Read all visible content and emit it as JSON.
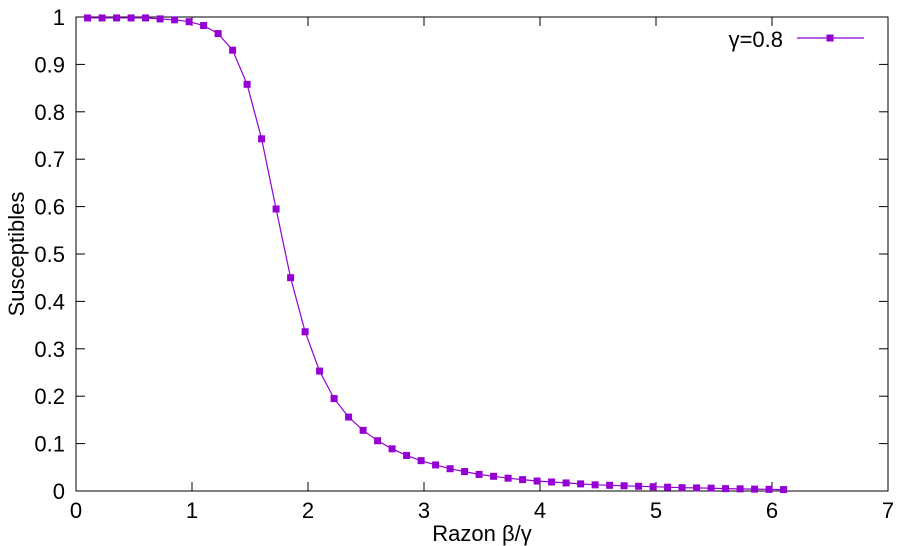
{
  "chart_data": {
    "type": "line",
    "xlabel": "Razon β/γ",
    "ylabel": "Susceptibles",
    "xlim": [
      0,
      7
    ],
    "ylim": [
      0,
      1
    ],
    "xticks": [
      "0",
      "1",
      "2",
      "3",
      "4",
      "5",
      "6",
      "7"
    ],
    "yticks": [
      "0",
      "0.1",
      "0.2",
      "0.3",
      "0.4",
      "0.5",
      "0.6",
      "0.7",
      "0.8",
      "0.9",
      "1"
    ],
    "grid": false,
    "legend_position": "top-right",
    "series": [
      {
        "name": "γ=0.8",
        "color": "#9400d3",
        "marker": "square",
        "x": [
          0.1,
          0.225,
          0.35,
          0.475,
          0.6,
          0.725,
          0.85,
          0.975,
          1.1,
          1.225,
          1.35,
          1.475,
          1.6,
          1.725,
          1.85,
          1.975,
          2.1,
          2.225,
          2.35,
          2.475,
          2.6,
          2.725,
          2.85,
          2.975,
          3.1,
          3.225,
          3.35,
          3.475,
          3.6,
          3.725,
          3.85,
          3.975,
          4.1,
          4.225,
          4.35,
          4.475,
          4.6,
          4.725,
          4.85,
          4.975,
          5.1,
          5.225,
          5.35,
          5.475,
          5.6,
          5.725,
          5.85,
          5.975,
          6.1
        ],
        "y": [
          0.998,
          0.998,
          0.998,
          0.998,
          0.998,
          0.996,
          0.994,
          0.99,
          0.982,
          0.965,
          0.93,
          0.858,
          0.743,
          0.595,
          0.45,
          0.336,
          0.253,
          0.195,
          0.156,
          0.128,
          0.106,
          0.089,
          0.075,
          0.064,
          0.055,
          0.047,
          0.041,
          0.035,
          0.031,
          0.027,
          0.024,
          0.021,
          0.019,
          0.017,
          0.015,
          0.013,
          0.012,
          0.011,
          0.01,
          0.009,
          0.008,
          0.007,
          0.0065,
          0.006,
          0.005,
          0.0045,
          0.004,
          0.0035,
          0.003
        ]
      }
    ]
  }
}
